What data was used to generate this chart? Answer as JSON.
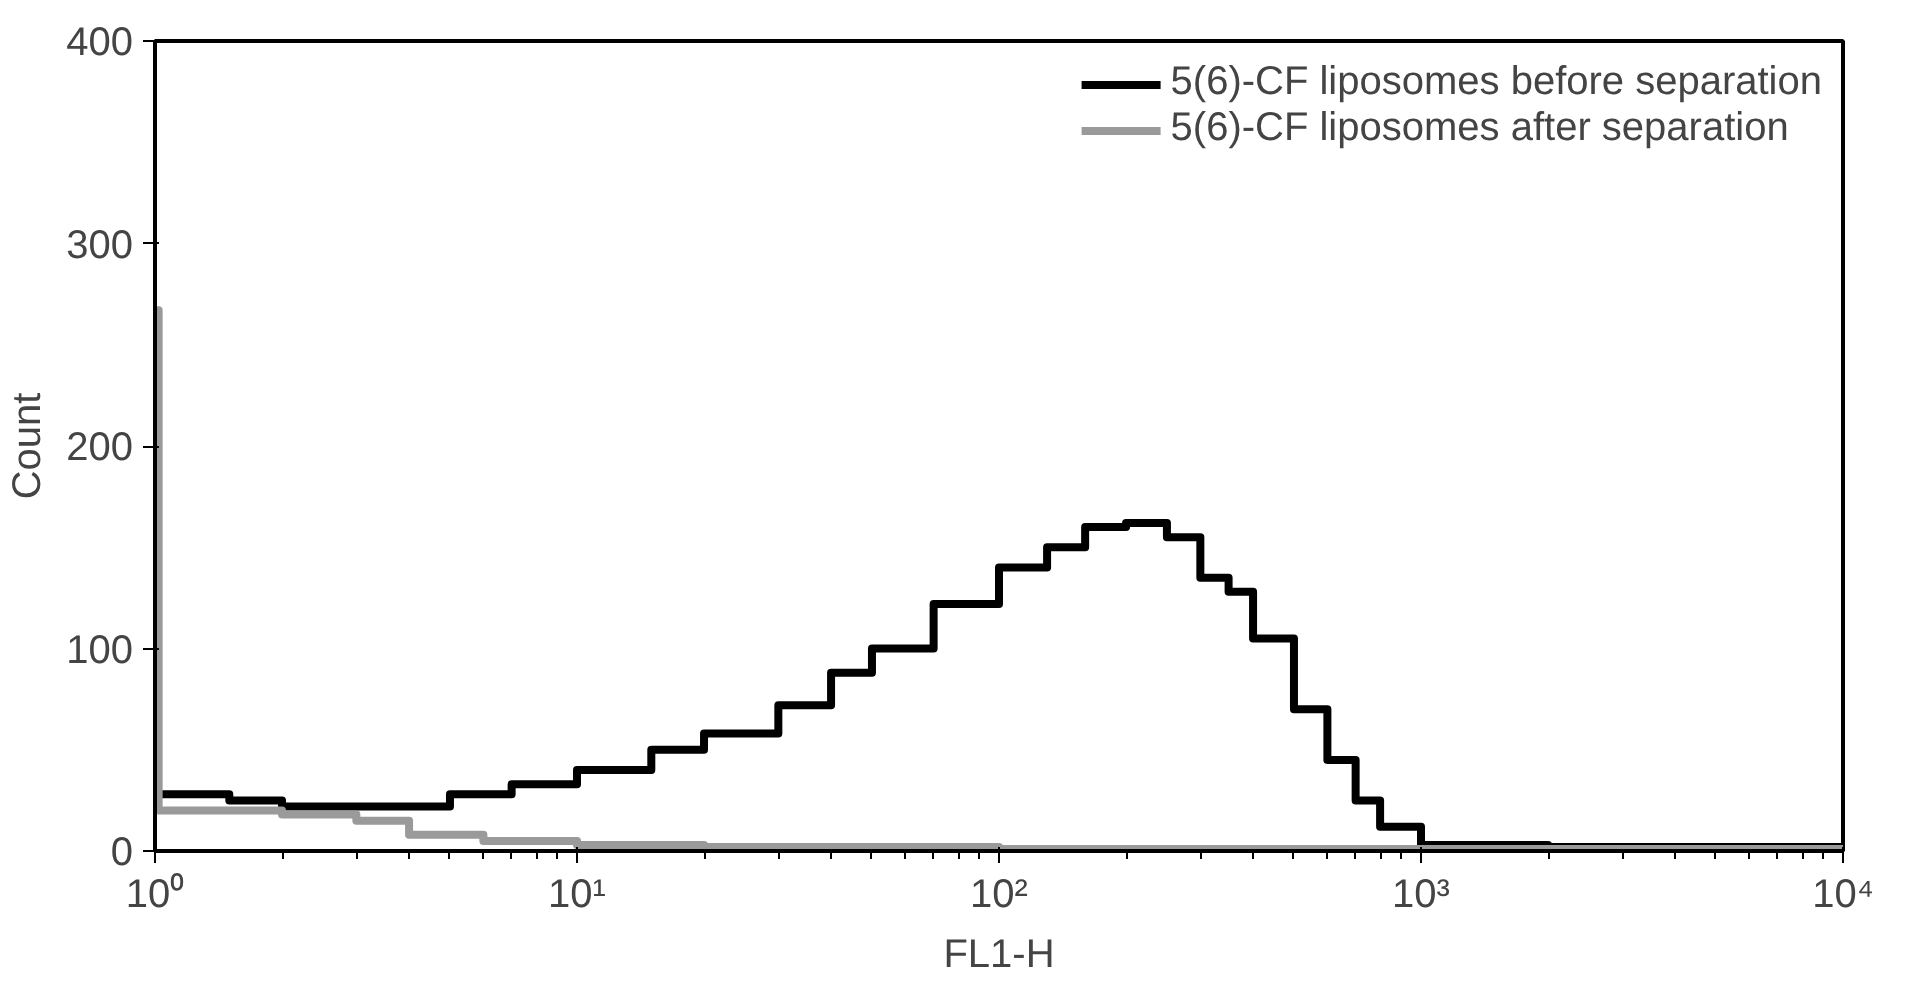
{
  "chart_data": {
    "type": "step",
    "xlabel": "FL1-H",
    "ylabel": "Count",
    "log": "x",
    "xlim": [
      1,
      10000
    ],
    "ylim": [
      0,
      400
    ],
    "xticks": [
      {
        "value": 1,
        "label": "10⁰"
      },
      {
        "value": 10,
        "label": "10¹"
      },
      {
        "value": 100,
        "label": "10²"
      },
      {
        "value": 1000,
        "label": "10³"
      },
      {
        "value": 10000,
        "label": "10⁴"
      }
    ],
    "yticks": [
      0,
      100,
      200,
      300,
      400
    ],
    "grid": false,
    "legend": "top right",
    "line_style": "solid",
    "marker": "none",
    "series": [
      {
        "name": "5(6)-CF liposomes before separation",
        "color": "#000000",
        "x": [
          1,
          1.5,
          2,
          3,
          5,
          7,
          10,
          15,
          20,
          30,
          40,
          50,
          70,
          100,
          130,
          160,
          200,
          250,
          300,
          350,
          400,
          500,
          600,
          700,
          800,
          1000,
          2000,
          10000
        ],
        "values": [
          28,
          25,
          22,
          22,
          28,
          33,
          40,
          50,
          58,
          72,
          88,
          100,
          122,
          140,
          150,
          160,
          162,
          155,
          135,
          128,
          105,
          70,
          45,
          25,
          12,
          3,
          2,
          2
        ]
      },
      {
        "name": "5(6)-CF liposomes after separation",
        "color": "#9a9a9a",
        "x": [
          1,
          1.02,
          2,
          3,
          4,
          6,
          10,
          20,
          100,
          1000,
          10000
        ],
        "values": [
          267,
          20,
          18,
          15,
          8,
          5,
          3,
          2,
          1,
          1,
          1
        ]
      }
    ]
  }
}
